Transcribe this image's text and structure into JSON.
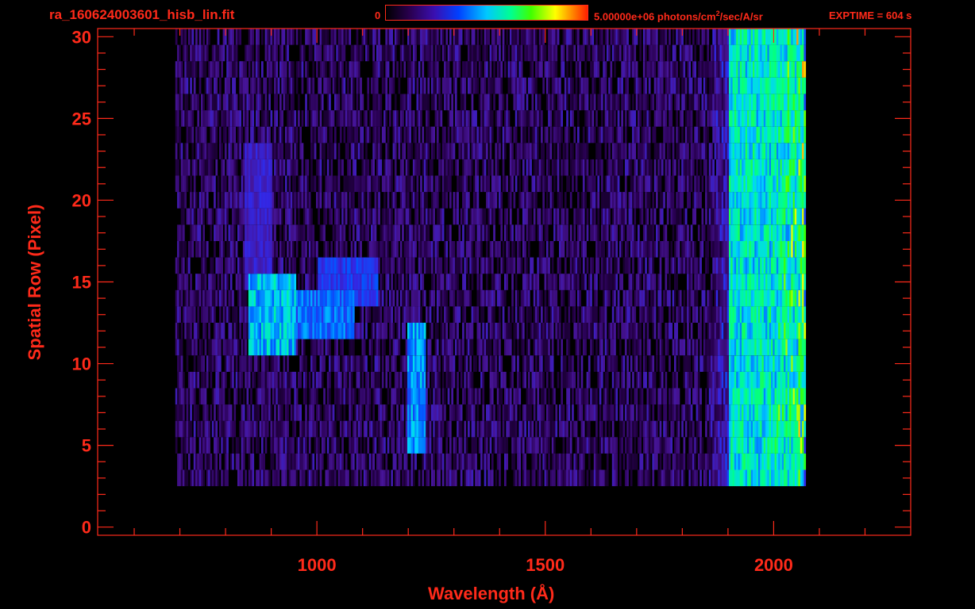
{
  "header": {
    "filename": "ra_160624003601_hisb_lin.fit",
    "colorbar_min": "0",
    "colorbar_max_main": "5.00000e+06 photons/cm",
    "colorbar_max_sup": "2",
    "colorbar_max_tail": "/sec/A/sr",
    "exptime": "EXPTIME = 604 s"
  },
  "colors": {
    "axis": "#ff2a1a",
    "background": "#000000"
  },
  "chart_data": {
    "type": "heatmap",
    "title": "ra_160624003601_hisb_lin.fit",
    "xlabel": "Wavelength (Å)",
    "ylabel": "Spatial Row (Pixel)",
    "xlim": [
      520,
      2300
    ],
    "ylim": [
      -0.5,
      30.5
    ],
    "x_ticks": [
      "1000",
      "1500",
      "2000"
    ],
    "x_tick_values": [
      1000,
      1500,
      2000
    ],
    "y_ticks": [
      "0",
      "5",
      "10",
      "15",
      "20",
      "25",
      "30"
    ],
    "y_tick_values": [
      0,
      5,
      10,
      15,
      20,
      25,
      30
    ],
    "colorbar": {
      "min": 0,
      "max": 5000000,
      "unit": "photons/cm2/sec/A/sr"
    },
    "data_extent": {
      "x_start": 690,
      "x_end": 2070,
      "row_min": 3,
      "row_max": 30
    },
    "features": [
      {
        "name": "bright blob",
        "x": [
          850,
          950
        ],
        "rows": [
          11,
          15
        ],
        "level": 0.55
      },
      {
        "name": "horizontal band",
        "x": [
          880,
          1080
        ],
        "rows": [
          12,
          14
        ],
        "level": 0.45
      },
      {
        "name": "diagonal band",
        "x": [
          1000,
          1130
        ],
        "rows": [
          14,
          16
        ],
        "level": 0.38
      },
      {
        "name": "rising streak",
        "x": [
          840,
          900
        ],
        "rows": [
          15,
          23
        ],
        "level": 0.3
      },
      {
        "name": "vertical line",
        "x": [
          1195,
          1235
        ],
        "rows": [
          5,
          12
        ],
        "level": 0.5
      },
      {
        "name": "right edge",
        "x": [
          1900,
          2065
        ],
        "rows": [
          2,
          30
        ],
        "level": 0.6
      }
    ]
  }
}
